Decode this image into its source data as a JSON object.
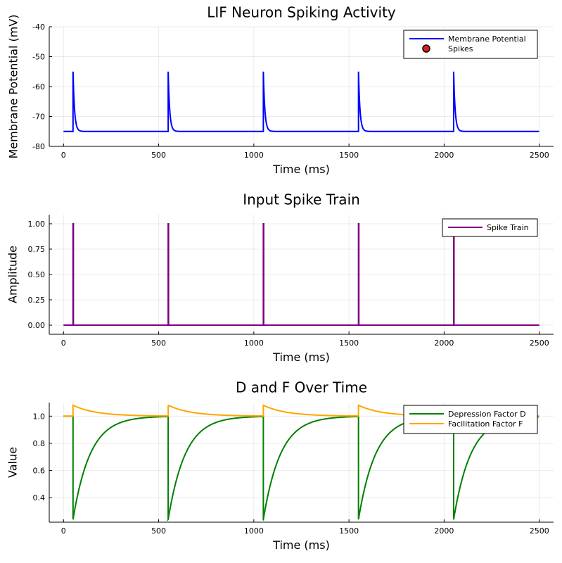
{
  "chart_data": [
    {
      "type": "line",
      "title": "LIF Neuron Spiking Activity",
      "xlabel": "Time (ms)",
      "ylabel": "Membrane Potential (mV)",
      "xlim": [
        -75,
        2575
      ],
      "ylim": [
        -80,
        -40
      ],
      "xticks": [
        0,
        500,
        1000,
        1500,
        2000,
        2500
      ],
      "yticks": [
        -80,
        -70,
        -60,
        -50,
        -40
      ],
      "grid": true,
      "legend_position": "top-right",
      "spike_times": [
        50,
        550,
        1050,
        1550,
        2050
      ],
      "series": [
        {
          "name": "Membrane Potential",
          "color": "#0000ff",
          "marker": "line",
          "rest": -75,
          "peak": -55,
          "x_end": 2500
        },
        {
          "name": "Spikes",
          "color": "#e31a1c",
          "marker": "circle",
          "values": []
        }
      ]
    },
    {
      "type": "line",
      "title": "Input Spike Train",
      "xlabel": "Time (ms)",
      "ylabel": "Amplitude",
      "xlim": [
        -75,
        2575
      ],
      "ylim": [
        -0.09,
        1.09
      ],
      "xticks": [
        0,
        500,
        1000,
        1500,
        2000,
        2500
      ],
      "yticks": [
        "0.00",
        "0.25",
        "0.50",
        "0.75",
        "1.00"
      ],
      "grid": true,
      "legend_position": "top-right",
      "spike_times": [
        50,
        550,
        1050,
        1550,
        2050
      ],
      "series": [
        {
          "name": "Spike Train",
          "color": "#800080",
          "baseline": 0,
          "peak": 1,
          "x_end": 2500
        }
      ]
    },
    {
      "type": "line",
      "title": "D and F Over Time",
      "xlabel": "Time (ms)",
      "ylabel": "Value",
      "xlim": [
        -75,
        2575
      ],
      "ylim": [
        0.22,
        1.1
      ],
      "xticks": [
        0,
        500,
        1000,
        1500,
        2000,
        2500
      ],
      "yticks": [
        "0.4",
        "0.6",
        "0.8",
        "1.0"
      ],
      "grid": true,
      "legend_position": "top-right",
      "spike_times": [
        50,
        550,
        1050,
        1550,
        2050
      ],
      "series": [
        {
          "name": "Depression Factor D",
          "color": "#008000",
          "baseline": 1.0,
          "min": 0.24,
          "x_end": 2500
        },
        {
          "name": "Facilitation Factor F",
          "color": "#ffa500",
          "baseline": 1.0,
          "max": 1.08,
          "x_end": 2500
        }
      ]
    }
  ]
}
